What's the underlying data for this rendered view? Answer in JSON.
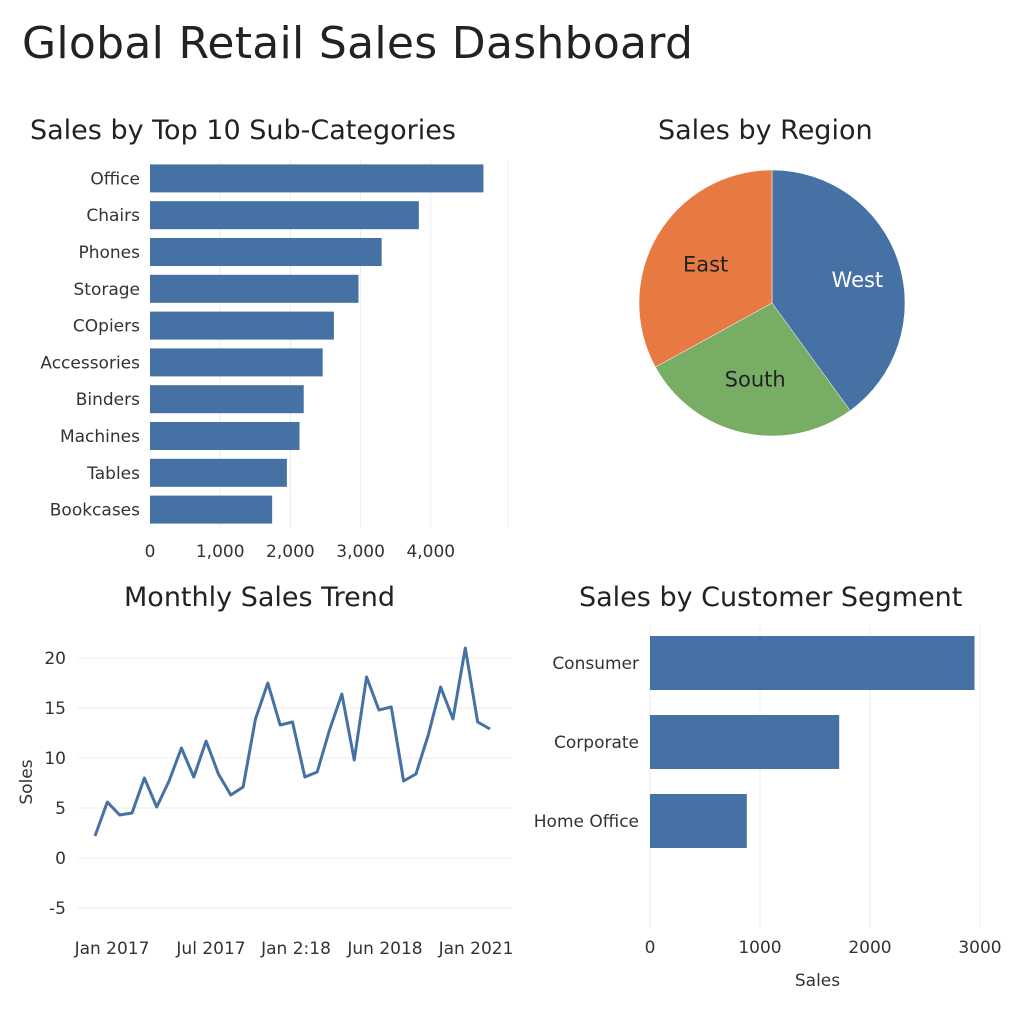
{
  "dashboard": {
    "title": "Global Retail Sales Dashboard"
  },
  "colors": {
    "blue": "#4671a5",
    "orange": "#e77a43",
    "green": "#78ad66"
  },
  "chart_data": [
    {
      "id": "subcat",
      "type": "bar",
      "orientation": "horizontal",
      "title": "Sales by Top 10 Sub-Categories",
      "categories": [
        "Office",
        "Chairs",
        "Phones",
        "Storage",
        "COpiers",
        "Accessories",
        "Binders",
        "Machines",
        "Tables",
        "Bookcases"
      ],
      "values": [
        4750,
        3830,
        3300,
        2970,
        2620,
        2460,
        2190,
        2130,
        1950,
        1740
      ],
      "xticks": [
        0,
        1000,
        2000,
        3000,
        4000
      ],
      "xtick_labels": [
        "0",
        "1,000",
        "2,000",
        "3,000",
        "4,000"
      ],
      "xlim": [
        0,
        5100
      ],
      "grid": true
    },
    {
      "id": "region",
      "type": "pie",
      "title": "Sales by Region",
      "slices": [
        {
          "label": "West",
          "value": 40,
          "color": "#4671a5"
        },
        {
          "label": "South",
          "value": 27,
          "color": "#78ad66"
        },
        {
          "label": "East",
          "value": 33,
          "color": "#e77a43"
        }
      ]
    },
    {
      "id": "trend",
      "type": "line",
      "title": "Monthly Sales Trend",
      "ylabel": "Soles",
      "ylim": [
        -7,
        23
      ],
      "yticks": [
        -5,
        0,
        5,
        10,
        15,
        20
      ],
      "xtick_labels": [
        "Jan 2017",
        "Jul 2017",
        "Jan 2:18",
        "Jun 2018",
        "Jan 2021"
      ],
      "values": [
        2.2,
        5.6,
        4.3,
        4.5,
        8.0,
        5.1,
        7.7,
        11.0,
        8.1,
        11.7,
        8.4,
        6.3,
        7.1,
        13.9,
        17.5,
        13.3,
        13.6,
        8.1,
        8.6,
        12.8,
        16.4,
        9.8,
        18.1,
        14.8,
        15.1,
        7.7,
        8.4,
        12.3,
        17.1,
        13.9,
        21.0,
        13.6,
        12.9
      ],
      "grid": true
    },
    {
      "id": "segment",
      "type": "bar",
      "orientation": "horizontal",
      "title": "Sales by Customer Segment",
      "xlabel": "Sales",
      "categories": [
        "Consumer",
        "Corporate",
        "Home Office"
      ],
      "values": [
        2950,
        1720,
        880
      ],
      "xticks": [
        0,
        1000,
        2000,
        3000
      ],
      "xtick_labels": [
        "0",
        "1000",
        "2000",
        "3000"
      ],
      "xlim": [
        0,
        3300
      ],
      "grid": true
    }
  ]
}
